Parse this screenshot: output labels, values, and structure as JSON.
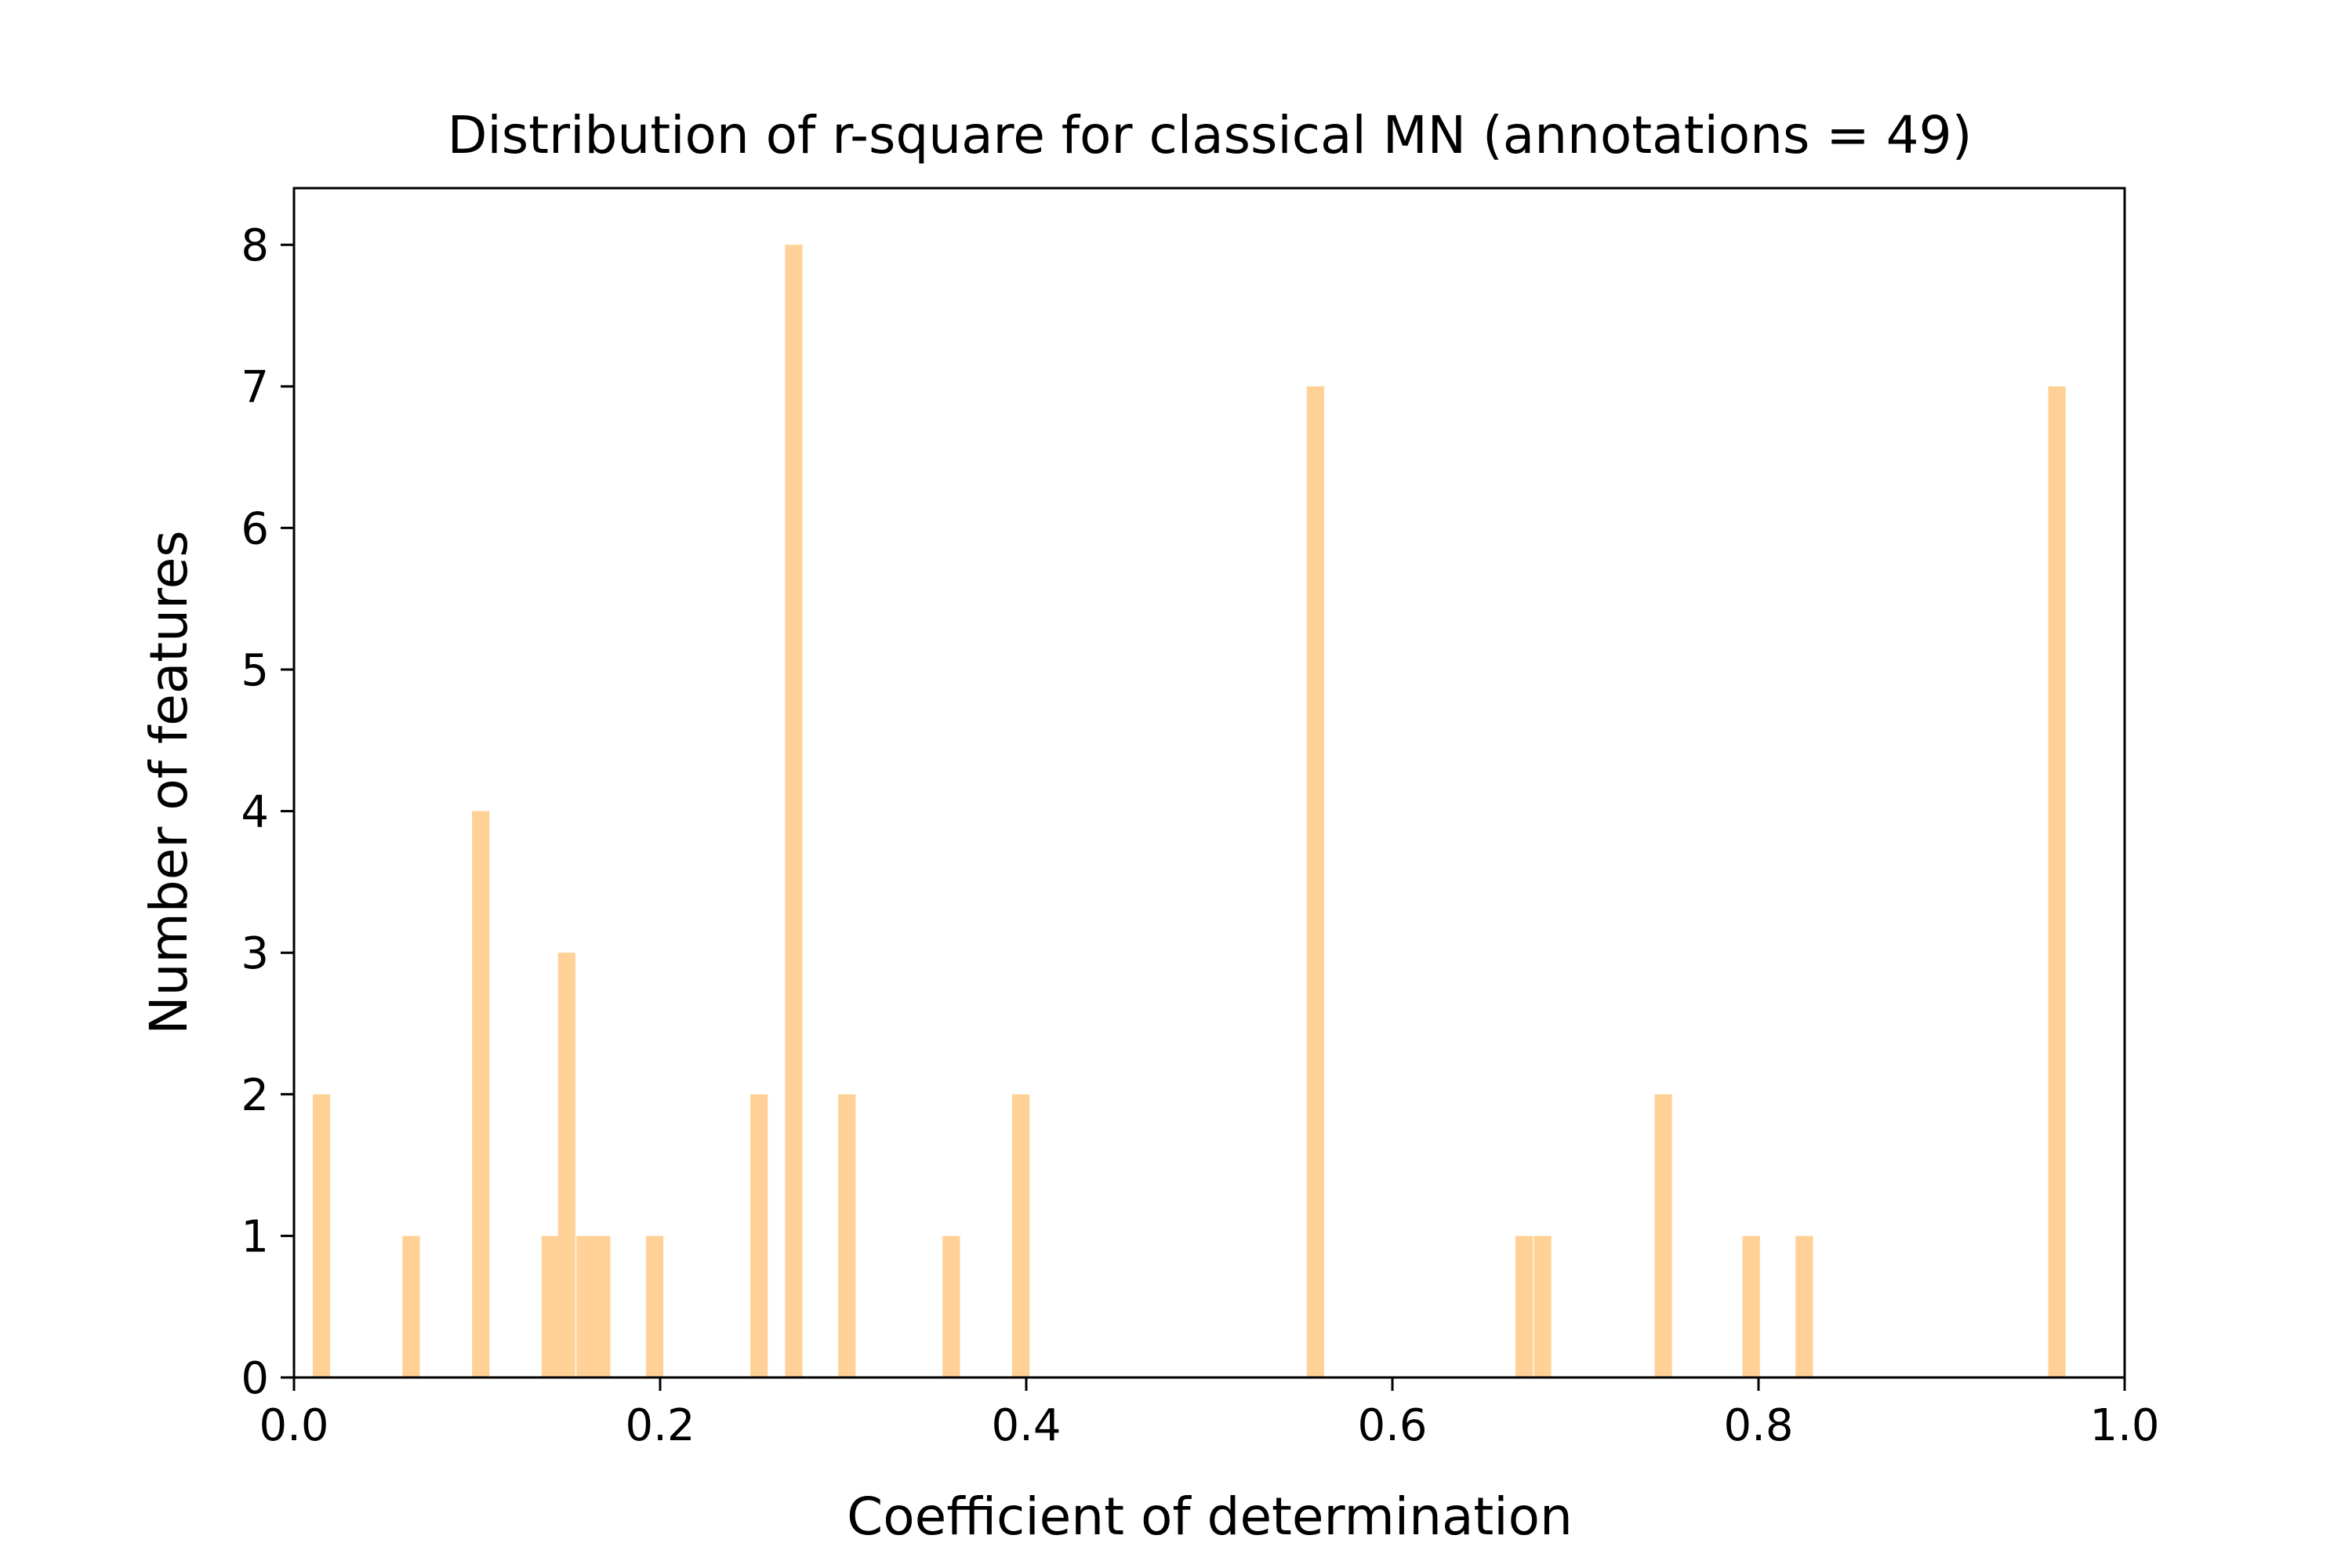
{
  "chart_data": {
    "type": "bar",
    "title": "Distribution of r-square for classical MN (annotations = 49)",
    "xlabel": "Coefficient of determination",
    "ylabel": "Number of features",
    "xlim": [
      0.0,
      1.0
    ],
    "ylim": [
      0,
      8.4
    ],
    "bin_width": 0.0095,
    "xticks": [
      "0.0",
      "0.2",
      "0.4",
      "0.6",
      "0.8",
      "1.0"
    ],
    "yticks": [
      "0",
      "1",
      "2",
      "3",
      "4",
      "5",
      "6",
      "7",
      "8"
    ],
    "grid": false,
    "bar_color": "#FFD196",
    "bins": [
      {
        "x": 0.015,
        "count": 2
      },
      {
        "x": 0.064,
        "count": 1
      },
      {
        "x": 0.102,
        "count": 4
      },
      {
        "x": 0.14,
        "count": 1
      },
      {
        "x": 0.149,
        "count": 3
      },
      {
        "x": 0.159,
        "count": 1
      },
      {
        "x": 0.168,
        "count": 1
      },
      {
        "x": 0.197,
        "count": 1
      },
      {
        "x": 0.254,
        "count": 2
      },
      {
        "x": 0.273,
        "count": 8
      },
      {
        "x": 0.302,
        "count": 2
      },
      {
        "x": 0.359,
        "count": 1
      },
      {
        "x": 0.397,
        "count": 2
      },
      {
        "x": 0.558,
        "count": 7
      },
      {
        "x": 0.672,
        "count": 1
      },
      {
        "x": 0.682,
        "count": 1
      },
      {
        "x": 0.748,
        "count": 2
      },
      {
        "x": 0.796,
        "count": 1
      },
      {
        "x": 0.825,
        "count": 1
      },
      {
        "x": 0.963,
        "count": 7
      }
    ]
  }
}
